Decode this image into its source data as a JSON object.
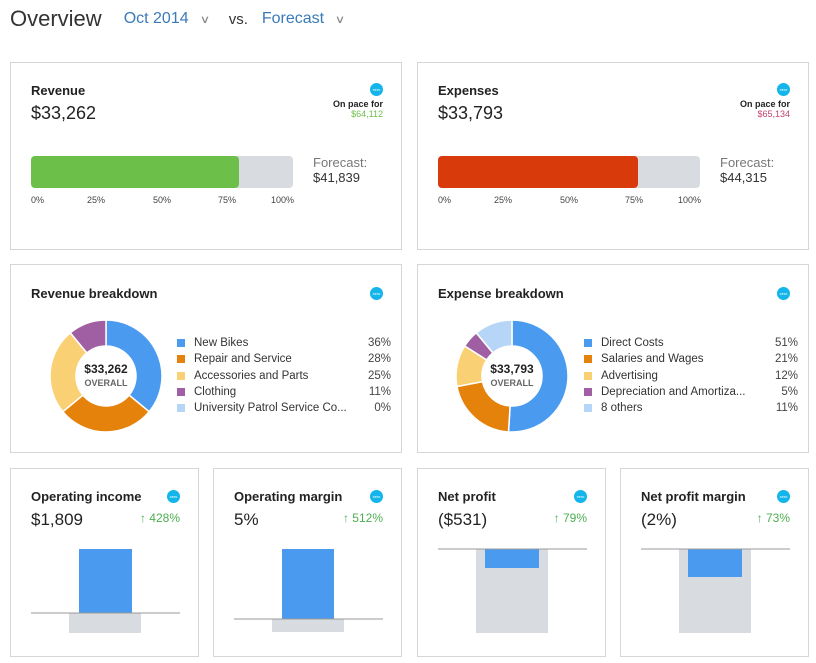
{
  "header": {
    "title": "Overview",
    "period": "Oct 2014",
    "vs": "vs.",
    "compare": "Forecast"
  },
  "colors": {
    "accent": "#3a7ab8",
    "revenue_bar": "#6cc04a",
    "expense_bar": "#d93a0b",
    "track": "#d8dbe0",
    "positive": "#4caf50",
    "blue": "#4a9af0",
    "xero": "#13b5ea"
  },
  "revenue": {
    "title": "Revenue",
    "value": "$33,262",
    "pace_label": "On pace for",
    "pace_value": "$64,112",
    "progress_pct": 79.5,
    "forecast_label": "Forecast:",
    "forecast_value": "$41,839",
    "ticks": [
      "0%",
      "25%",
      "50%",
      "75%",
      "100%"
    ]
  },
  "expenses": {
    "title": "Expenses",
    "value": "$33,793",
    "pace_label": "On pace for",
    "pace_value": "$65,134",
    "progress_pct": 76.3,
    "forecast_label": "Forecast:",
    "forecast_value": "$44,315",
    "ticks": [
      "0%",
      "25%",
      "50%",
      "75%",
      "100%"
    ]
  },
  "revenue_breakdown": {
    "title": "Revenue breakdown",
    "center_value": "$33,262",
    "center_label": "OVERALL",
    "items": [
      {
        "name": "New Bikes",
        "pct": "36%",
        "value": 36,
        "color": "#4a9af0"
      },
      {
        "name": "Repair and Service",
        "pct": "28%",
        "value": 28,
        "color": "#e5820b"
      },
      {
        "name": "Accessories and Parts",
        "pct": "25%",
        "value": 25,
        "color": "#fad074"
      },
      {
        "name": "Clothing",
        "pct": "11%",
        "value": 11,
        "color": "#a05fa2"
      },
      {
        "name": "University Patrol Service Co...",
        "pct": "0%",
        "value": 0,
        "color": "#b7d6f7"
      }
    ]
  },
  "expense_breakdown": {
    "title": "Expense breakdown",
    "center_value": "$33,793",
    "center_label": "OVERALL",
    "items": [
      {
        "name": "Direct Costs",
        "pct": "51%",
        "value": 51,
        "color": "#4a9af0"
      },
      {
        "name": "Salaries and Wages",
        "pct": "21%",
        "value": 21,
        "color": "#e5820b"
      },
      {
        "name": "Advertising",
        "pct": "12%",
        "value": 12,
        "color": "#fad074"
      },
      {
        "name": "Depreciation and Amortiza...",
        "pct": "5%",
        "value": 5,
        "color": "#a05fa2"
      },
      {
        "name": "8 others",
        "pct": "11%",
        "value": 11,
        "color": "#b7d6f7"
      }
    ]
  },
  "metrics": [
    {
      "title": "Operating income",
      "value": "$1,809",
      "delta": "↑ 428%",
      "positive": true
    },
    {
      "title": "Operating margin",
      "value": "5%",
      "delta": "↑ 512%",
      "positive": true
    },
    {
      "title": "Net profit",
      "value": "($531)",
      "delta": "↑ 79%",
      "positive": false
    },
    {
      "title": "Net profit margin",
      "value": "(2%)",
      "delta": "↑ 73%",
      "positive": false
    }
  ]
}
